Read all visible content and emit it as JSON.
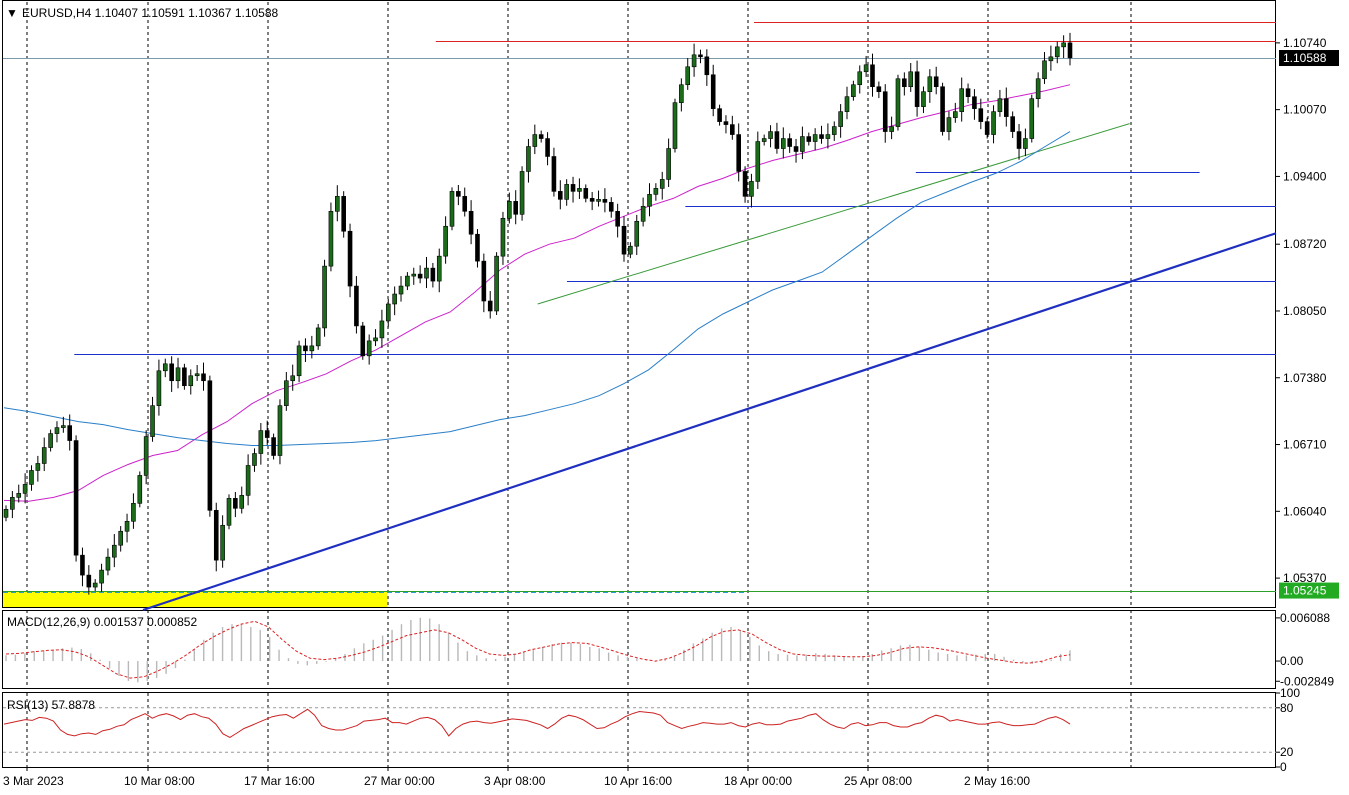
{
  "header": {
    "symbol_label": "EURUSD,H4  1.10407  1.10591  1.10367  1.10588",
    "arrow_glyph": "▼"
  },
  "colors": {
    "bull_body": "#1b6b1b",
    "bear_body": "#000000",
    "wick": "#000000",
    "ma_fast": "#cc22cc",
    "ma_slow": "#2a7fc8",
    "trend_bold": "#1f2fbf",
    "trend_green": "#3a9a3a",
    "h_blue": "#1a2fcc",
    "h_red": "#dd2222",
    "price_line": "#7a9aaa",
    "support_green": "#2aa02a",
    "zone_yellow": "#ffff00",
    "last_price_bg": "#000000",
    "green_badge": "#22aa22",
    "macd_hist": "#b8b8b8",
    "macd_signal": "#dd2222",
    "rsi_line": "#cc2222",
    "grid": "#000000"
  },
  "chart_data": [
    {
      "type": "candlestick",
      "title": "EURUSD,H4  1.10407  1.10591  1.10367  1.10588",
      "ohlc_last": {
        "open": 1.10407,
        "high": 1.10591,
        "low": 1.10367,
        "close": 1.10588
      },
      "y_ticks": [
        "1.10740",
        "1.10070",
        "1.09400",
        "1.08720",
        "1.08050",
        "1.07380",
        "1.06710",
        "1.06040",
        "1.05370"
      ],
      "y_tick_values": [
        1.1074,
        1.1007,
        1.094,
        1.0872,
        1.0805,
        1.0738,
        1.0671,
        1.0604,
        1.0537
      ],
      "ylim": [
        1.0508,
        1.1115
      ],
      "x_ticks": [
        "3 Mar 2023",
        "10 Mar 08:00",
        "17 Mar 16:00",
        "27 Mar 00:00",
        "3 Apr 08:00",
        "10 Apr 16:00",
        "18 Apr 00:00",
        "25 Apr 08:00",
        "2 May 16:00"
      ],
      "price_badges": [
        {
          "label": "1.10588",
          "value": 1.10588,
          "style": "last"
        },
        {
          "label": "1.05245",
          "value": 1.05245,
          "style": "green"
        }
      ],
      "horizontal_lines": [
        {
          "value": 1.10758,
          "color": "red",
          "x_from": 0.34,
          "x_to": 1.0
        },
        {
          "value": 1.10954,
          "color": "red",
          "x_from": 0.59,
          "x_to": 1.0
        },
        {
          "value": 1.09443,
          "color": "blue",
          "x_from": 0.717,
          "x_to": 0.94
        },
        {
          "value": 1.09104,
          "color": "blue",
          "x_from": 0.536,
          "x_to": 1.0
        },
        {
          "value": 1.08352,
          "color": "blue",
          "x_from": 0.443,
          "x_to": 1.0
        },
        {
          "value": 1.07615,
          "color": "blue",
          "x_from": 0.056,
          "x_to": 1.0
        },
        {
          "value": 1.05245,
          "color": "green",
          "x_from": 0.0,
          "x_to": 1.0
        }
      ],
      "trendlines": [
        {
          "name": "bold",
          "from": [
            0.11,
            1.0505
          ],
          "to": [
            1.0,
            1.0883
          ]
        },
        {
          "name": "green",
          "from": [
            0.42,
            1.0812
          ],
          "to": [
            0.885,
            1.0993
          ]
        }
      ],
      "candle_closes": [
        1.0606,
        1.0618,
        1.0622,
        1.0631,
        1.0645,
        1.0652,
        1.0668,
        1.0682,
        1.0688,
        1.069,
        1.0675,
        1.056,
        1.054,
        1.0528,
        1.0532,
        1.0545,
        1.0558,
        1.057,
        1.0584,
        1.0594,
        1.0612,
        1.064,
        1.0679,
        1.071,
        1.0745,
        1.0752,
        1.0735,
        1.0748,
        1.073,
        1.074,
        1.0742,
        1.0735,
        1.0605,
        1.0555,
        1.059,
        1.0617,
        1.0607,
        1.062,
        1.065,
        1.0662,
        1.0685,
        1.0678,
        1.066,
        1.071,
        1.0735,
        1.074,
        1.077,
        1.0765,
        1.077,
        1.0788,
        1.085,
        1.0905,
        1.092,
        1.0885,
        1.083,
        1.079,
        1.076,
        1.0775,
        1.0778,
        1.0795,
        1.0812,
        1.0822,
        1.083,
        1.084,
        1.0842,
        1.0838,
        1.0848,
        1.0835,
        1.086,
        1.089,
        1.0925,
        1.092,
        1.0905,
        1.0882,
        1.0855,
        1.0815,
        1.0805,
        1.086,
        1.0898,
        1.0915,
        1.0902,
        1.0945,
        1.097,
        1.0982,
        1.0978,
        1.096,
        1.0925,
        1.0917,
        1.0932,
        1.0925,
        1.0928,
        1.0918,
        1.0915,
        1.0917,
        1.0914,
        1.0905,
        1.089,
        1.0862,
        1.087,
        1.0895,
        1.091,
        1.0922,
        1.0928,
        1.0937,
        1.0968,
        1.1014,
        1.1032,
        1.105,
        1.1062,
        1.106,
        1.1042,
        1.1008,
        1.0995,
        1.0992,
        1.0982,
        1.0945,
        1.092,
        1.0935,
        1.0975,
        1.0978,
        1.0985,
        1.0968,
        1.0978,
        1.097,
        1.0965,
        1.098,
        1.0975,
        1.0982,
        1.0978,
        1.0982,
        1.099,
        1.1005,
        1.102,
        1.1032,
        1.1045,
        1.1052,
        1.103,
        1.1025,
        1.0985,
        1.099,
        1.1038,
        1.103,
        1.1045,
        1.101,
        1.1025,
        1.104,
        1.103,
        1.0985,
        1.0999,
        1.1005,
        1.1028,
        1.102,
        1.1008,
        1.0995,
        1.0982,
        1.1005,
        1.1018,
        1.1,
        1.0985,
        1.0968,
        1.0978,
        1.1018,
        1.1038,
        1.1056,
        1.106,
        1.107,
        1.1074,
        1.1059
      ],
      "ma_fast": [
        1.0615,
        1.0614,
        1.0618,
        1.0625,
        1.064,
        1.0651,
        1.066,
        1.0665,
        1.0681,
        1.0694,
        1.0712,
        1.0725,
        1.0733,
        1.0742,
        1.0755,
        1.0766,
        1.078,
        1.0794,
        1.0804,
        1.0824,
        1.0846,
        1.0862,
        1.0872,
        1.0878,
        1.089,
        1.09,
        1.091,
        1.0918,
        1.093,
        1.0938,
        1.0948,
        1.0956,
        1.0962,
        1.0968,
        1.0976,
        1.0985,
        1.0992,
        1.0999,
        1.1005,
        1.1012,
        1.1016,
        1.1021,
        1.1026,
        1.1032
      ],
      "ma_slow": [
        1.0708,
        1.0704,
        1.0699,
        1.0694,
        1.0691,
        1.0686,
        1.0682,
        1.0678,
        1.0675,
        1.0672,
        1.067,
        1.067,
        1.0671,
        1.0672,
        1.0673,
        1.0675,
        1.0678,
        1.0681,
        1.0684,
        1.069,
        1.0696,
        1.07,
        1.0706,
        1.0712,
        1.072,
        1.0732,
        1.0746,
        1.0766,
        1.0787,
        1.0802,
        1.0814,
        1.0826,
        1.0835,
        1.0844,
        1.0862,
        1.088,
        1.0898,
        1.0914,
        1.0924,
        1.0934,
        1.0943,
        1.0955,
        1.097,
        1.0985
      ]
    },
    {
      "type": "bar",
      "title": "MACD(12,26,9) 0.001537 0.000852",
      "y_ticks": [
        "0.006088",
        "0.00",
        "-0.002849"
      ],
      "y_tick_values": [
        0.006088,
        0.0,
        -0.002849
      ],
      "ylim": [
        -0.0038,
        0.0072
      ],
      "histogram": [
        0.0008,
        0.0009,
        0.0011,
        0.0014,
        0.0015,
        0.0016,
        0.0018,
        0.0019,
        0.0017,
        0.0011,
        0.0002,
        -0.001,
        -0.0021,
        -0.0028,
        -0.003,
        -0.0028,
        -0.0024,
        -0.0018,
        -0.001,
        0.0002,
        0.0016,
        0.003,
        0.004,
        0.0048,
        0.0052,
        0.0052,
        0.0048,
        0.0044,
        0.0034,
        0.0016,
        0.0004,
        -0.0004,
        -0.0006,
        -0.0004,
        -0.0001,
        0.0004,
        0.001,
        0.0018,
        0.0025,
        0.003,
        0.0036,
        0.0044,
        0.0052,
        0.0058,
        0.0061,
        0.006,
        0.0052,
        0.004,
        0.0026,
        0.0014,
        0.0008,
        0.0004,
        0.0003,
        0.0006,
        0.001,
        0.0012,
        0.0016,
        0.002,
        0.0024,
        0.0026,
        0.0026,
        0.0024,
        0.002,
        0.0018,
        0.0012,
        0.0008,
        0.0006,
        0.0004,
        0.0001,
        -0.0001,
        0.0002,
        0.0008,
        0.0016,
        0.0025,
        0.0032,
        0.004,
        0.0046,
        0.0048,
        0.0044,
        0.0034,
        0.0022,
        0.0014,
        0.001,
        0.0009,
        0.0008,
        0.0009,
        0.0011,
        0.001,
        0.0008,
        0.0006,
        0.0005,
        0.0007,
        0.001,
        0.0015,
        0.0018,
        0.0022,
        0.0023,
        0.002,
        0.0016,
        0.0012,
        0.001,
        0.0008,
        0.0008,
        0.0009,
        0.001,
        0.001,
        0.0006,
        0.0002,
        -0.0002,
        -0.0004,
        -0.0003,
        0.0002,
        0.001,
        0.0015
      ],
      "signal": [
        0.001,
        0.0011,
        0.0013,
        0.0015,
        0.0016,
        0.0013,
        0.0006,
        -0.0006,
        -0.0018,
        -0.0024,
        -0.0022,
        -0.0014,
        -0.0004,
        0.0008,
        0.0022,
        0.0034,
        0.0044,
        0.0052,
        0.0056,
        0.0048,
        0.003,
        0.0014,
        0.0004,
        0.0002,
        0.0004,
        0.0008,
        0.0013,
        0.002,
        0.0028,
        0.0036,
        0.004,
        0.0044,
        0.004,
        0.003,
        0.0018,
        0.001,
        0.0008,
        0.001,
        0.0016,
        0.002,
        0.0024,
        0.0026,
        0.0025,
        0.002,
        0.0014,
        0.0008,
        0.0003,
        0.0,
        0.0004,
        0.0012,
        0.0022,
        0.0034,
        0.0042,
        0.0044,
        0.0038,
        0.0026,
        0.0016,
        0.001,
        0.0008,
        0.0007,
        0.0007,
        0.0006,
        0.0006,
        0.0008,
        0.0012,
        0.0018,
        0.002,
        0.0019,
        0.0016,
        0.0012,
        0.0008,
        0.0004,
        0.0001,
        -0.0002,
        -0.0003,
        0.0,
        0.0006,
        0.0009
      ]
    },
    {
      "type": "line",
      "title": "RSI(13) 57.8878",
      "y_ticks": [
        "100",
        "80",
        "20",
        "0"
      ],
      "y_tick_values": [
        100,
        80,
        20,
        0
      ],
      "ylim": [
        0,
        100
      ],
      "levels": [
        80,
        20
      ],
      "values": [
        58,
        60,
        62,
        64,
        63,
        67,
        66,
        62,
        50,
        44,
        42,
        45,
        46,
        44,
        49,
        51,
        55,
        57,
        64,
        68,
        72,
        66,
        70,
        72,
        69,
        64,
        70,
        72,
        68,
        66,
        58,
        45,
        40,
        46,
        52,
        56,
        60,
        64,
        68,
        70,
        71,
        66,
        72,
        78,
        70,
        56,
        52,
        50,
        50,
        53,
        56,
        62,
        63,
        64,
        66,
        60,
        60,
        58,
        62,
        66,
        67,
        64,
        56,
        42,
        52,
        58,
        61,
        62,
        60,
        59,
        61,
        63,
        65,
        64,
        63,
        60,
        57,
        52,
        58,
        66,
        70,
        68,
        64,
        58,
        52,
        53,
        58,
        62,
        68,
        72,
        75,
        74,
        73,
        70,
        60,
        56,
        52,
        55,
        57,
        60,
        59,
        58,
        58,
        60,
        56,
        54,
        58,
        60,
        57,
        57,
        58,
        62,
        64,
        66,
        70,
        72,
        64,
        58,
        54,
        52,
        58,
        60,
        56,
        57,
        60,
        60,
        56,
        54,
        54,
        58,
        60,
        66,
        70,
        68,
        62,
        64,
        62,
        60,
        58,
        58,
        60,
        61,
        58,
        56,
        56,
        57,
        58,
        62,
        66,
        68,
        64,
        58
      ]
    }
  ]
}
